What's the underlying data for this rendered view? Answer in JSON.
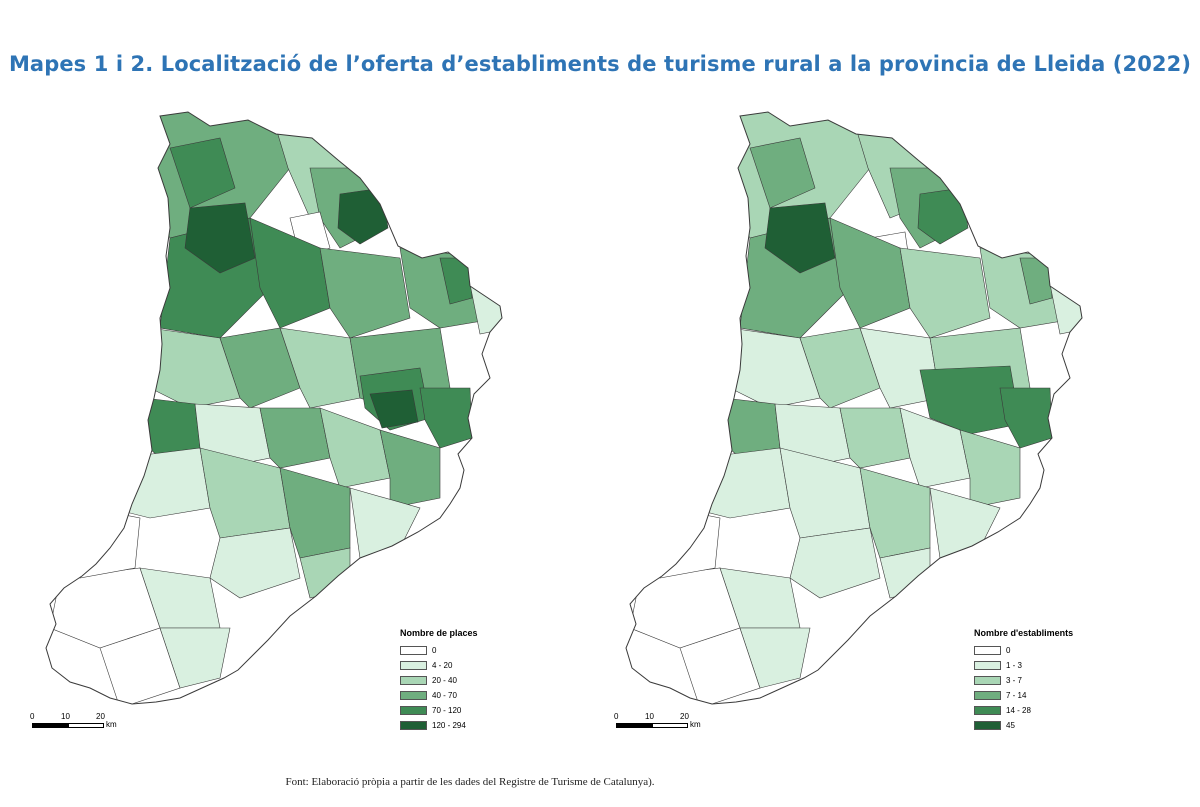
{
  "title": "Mapes 1 i 2. Localització de l’oferta d’establiments de turisme rural a la provincia de Lleida (2022)",
  "source": "Font: Elaboració pròpia a partir de les dades del Registre de Turisme de Catalunya).",
  "colors": {
    "title": "#2e74b5",
    "outline": "#3a3a3a",
    "classes": [
      "#ffffff",
      "#d9f0e0",
      "#a9d6b5",
      "#6fae7f",
      "#3f8b55",
      "#1f5f35"
    ]
  },
  "maps": [
    {
      "legend": {
        "title": "Nombre de places",
        "items": [
          {
            "label": "0",
            "color": "#ffffff"
          },
          {
            "label": "4 - 20",
            "color": "#d9f0e0"
          },
          {
            "label": "20 - 40",
            "color": "#a9d6b5"
          },
          {
            "label": "40 - 70",
            "color": "#6fae7f"
          },
          {
            "label": "70 - 120",
            "color": "#3f8b55"
          },
          {
            "label": "120 - 294",
            "color": "#1f5f35"
          }
        ]
      },
      "scale": {
        "ticks": [
          "0",
          "10",
          "20"
        ],
        "unit": "km"
      }
    },
    {
      "legend": {
        "title": "Nombre d'establiments",
        "items": [
          {
            "label": "0",
            "color": "#ffffff"
          },
          {
            "label": "1 - 3",
            "color": "#d9f0e0"
          },
          {
            "label": "3 - 7",
            "color": "#a9d6b5"
          },
          {
            "label": "7 - 14",
            "color": "#6fae7f"
          },
          {
            "label": "14 - 28",
            "color": "#3f8b55"
          },
          {
            "label": "45",
            "color": "#1f5f35"
          }
        ]
      },
      "scale": {
        "ticks": [
          "0",
          "10",
          "20"
        ],
        "unit": "km"
      }
    }
  ]
}
